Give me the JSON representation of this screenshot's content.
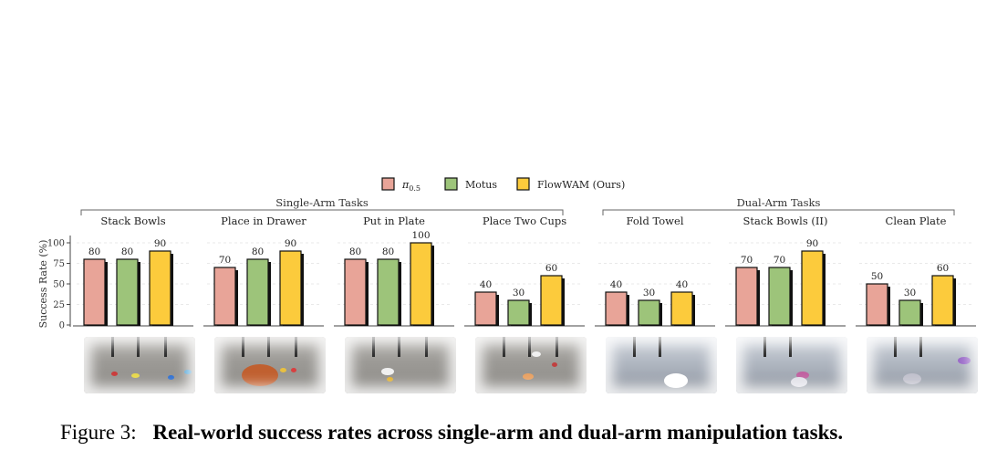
{
  "legend": [
    {
      "label": "π0.5",
      "color": "#E8A498"
    },
    {
      "label": "Motus",
      "color": "#9DC47A"
    },
    {
      "label": "FlowWAM (Ours)",
      "color": "#FCCB3C"
    }
  ],
  "group_labels": {
    "single": "Single-Arm Tasks",
    "dual": "Dual-Arm Tasks"
  },
  "chart_data": {
    "type": "bar",
    "ylabel": "Success Rate (%)",
    "ylim": [
      0,
      100
    ],
    "yticks": [
      0,
      25,
      50,
      75,
      100
    ],
    "grid": true,
    "legend_position": "top-center",
    "series_names": [
      "π0.5",
      "Motus",
      "FlowWAM (Ours)"
    ],
    "tasks": [
      {
        "name": "Stack Bowls",
        "group": "Single-Arm Tasks",
        "values": [
          80,
          80,
          90
        ]
      },
      {
        "name": "Place in Drawer",
        "group": "Single-Arm Tasks",
        "values": [
          70,
          80,
          90
        ]
      },
      {
        "name": "Put in Plate",
        "group": "Single-Arm Tasks",
        "values": [
          80,
          80,
          100
        ]
      },
      {
        "name": "Place Two Cups",
        "group": "Single-Arm Tasks",
        "values": [
          40,
          30,
          60
        ]
      },
      {
        "name": "Fold Towel",
        "group": "Dual-Arm Tasks",
        "values": [
          40,
          30,
          40
        ]
      },
      {
        "name": "Stack Bowls (II)",
        "group": "Dual-Arm Tasks",
        "values": [
          70,
          70,
          90
        ]
      },
      {
        "name": "Clean Plate",
        "group": "Dual-Arm Tasks",
        "values": [
          50,
          30,
          60
        ]
      }
    ]
  },
  "caption": {
    "number": "Figure 3:",
    "text": "Real-world success rates across single-arm and dual-arm manipulation tasks."
  }
}
